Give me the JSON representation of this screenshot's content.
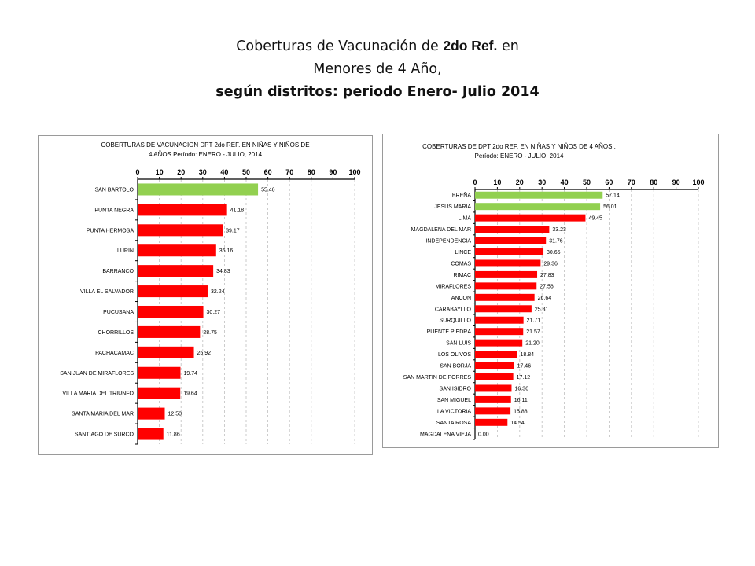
{
  "slide": {
    "title_part1": "Coberturas de Vacunación de ",
    "title_ref": "2do Ref.",
    "title_part2": " en",
    "title_line2": "Menores de 4 Año,",
    "title_line3": "según distritos: periodo Enero- Julio 2014"
  },
  "colors": {
    "high": "#92d050",
    "low": "#ff0000",
    "grid": "#bfbfbf"
  },
  "chart_data": [
    {
      "type": "bar",
      "orientation": "horizontal",
      "title_lines": [
        "COBERTURAS DE VACUNACION DPT 2do REF. EN NIÑAS Y NIÑOS DE",
        "4  AÑOS Período:  ENERO - JULIO, 2014"
      ],
      "xlim": [
        0,
        100
      ],
      "xticks": [
        0,
        10,
        20,
        30,
        40,
        50,
        60,
        70,
        80,
        90,
        100
      ],
      "grid": true,
      "axis_position": "top",
      "categories": [
        "SAN BARTOLO",
        "PUNTA NEGRA",
        "PUNTA HERMOSA",
        "LURIN",
        "BARRANCO",
        "VILLA EL SALVADOR",
        "PUCUSANA",
        "CHORRILLOS",
        "PACHACAMAC",
        "SAN JUAN DE MIRAFLORES",
        "VILLA MARIA DEL TRIUNFO",
        "SANTA MARIA DEL MAR",
        "SANTIAGO DE SURCO"
      ],
      "values": [
        55.46,
        41.18,
        39.17,
        36.16,
        34.83,
        32.24,
        30.27,
        28.75,
        25.92,
        19.74,
        19.64,
        12.5,
        11.86
      ],
      "value_labels": [
        "55.46",
        "41.18",
        "39.17",
        "36.16",
        "34.83",
        "32.24",
        "30.27",
        "28.75",
        "25.92",
        "19.74",
        "19.64",
        "12.50",
        "11.86"
      ],
      "bar_colors": [
        "high",
        "low",
        "low",
        "low",
        "low",
        "low",
        "low",
        "low",
        "low",
        "low",
        "low",
        "low",
        "low"
      ]
    },
    {
      "type": "bar",
      "orientation": "horizontal",
      "title_lines": [
        "COBERTURAS DE DPT 2do REF. EN NIÑAS Y NIÑOS DE 4 AÑOS ,",
        "Período:  ENERO - JULIO, 2014"
      ],
      "xlim": [
        0,
        100
      ],
      "xticks": [
        0,
        10,
        20,
        30,
        40,
        50,
        60,
        70,
        80,
        90,
        100
      ],
      "grid": true,
      "axis_position": "top",
      "categories": [
        "BREÑA",
        "JESUS MARIA",
        "LIMA",
        "MAGDALENA DEL MAR",
        "INDEPENDENCIA",
        "LINCE",
        "COMAS",
        "RIMAC",
        "MIRAFLORES",
        "ANCON",
        "CARABAYLLO",
        "SURQUILLO",
        "PUENTE PIEDRA",
        "SAN LUIS",
        "LOS OLIVOS",
        "SAN BORJA",
        "SAN MARTIN DE PORRES",
        "SAN ISIDRO",
        "SAN MIGUEL",
        "LA VICTORIA",
        "SANTA ROSA",
        "MAGDALENA VIEJA"
      ],
      "values": [
        57.14,
        56.01,
        49.45,
        33.23,
        31.76,
        30.65,
        29.36,
        27.83,
        27.56,
        26.64,
        25.31,
        21.71,
        21.57,
        21.2,
        18.84,
        17.46,
        17.12,
        16.36,
        16.11,
        15.88,
        14.54,
        0.0
      ],
      "value_labels": [
        "57.14",
        "56.01",
        "49.45",
        "33.23",
        "31.76",
        "30.65",
        "29.36",
        "27.83",
        "27.56",
        "26.64",
        "25.31",
        "21.71",
        "21.57",
        "21.20",
        "18.84",
        "17.46",
        "17.12",
        "16.36",
        "16.11",
        "15.88",
        "14.54",
        "0.00"
      ],
      "bar_colors": [
        "high",
        "high",
        "low",
        "low",
        "low",
        "low",
        "low",
        "low",
        "low",
        "low",
        "low",
        "low",
        "low",
        "low",
        "low",
        "low",
        "low",
        "low",
        "low",
        "low",
        "low",
        "low"
      ]
    }
  ]
}
